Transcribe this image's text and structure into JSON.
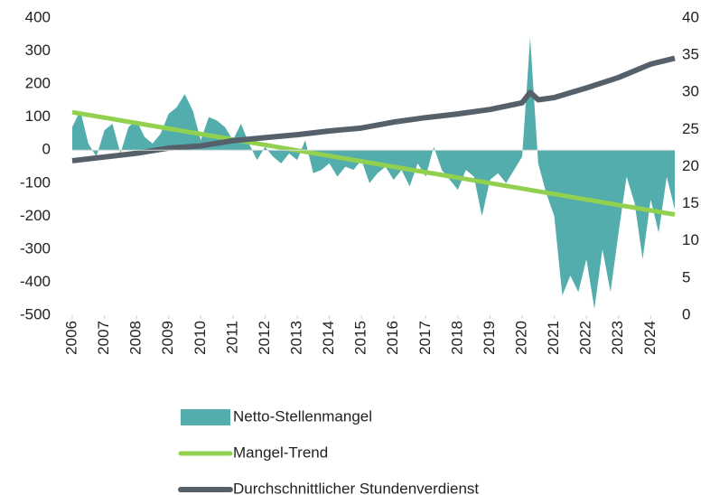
{
  "chart_data": {
    "type": "combo",
    "xlim": [
      2006,
      2024.75
    ],
    "xticks": [
      2006,
      2007,
      2008,
      2009,
      2010,
      2011,
      2012,
      2013,
      2014,
      2015,
      2016,
      2017,
      2018,
      2019,
      2020,
      2021,
      2022,
      2023,
      2024
    ],
    "ylim": [
      -500,
      400
    ],
    "yticks": [
      -500,
      -400,
      -300,
      -200,
      -100,
      0,
      100,
      200,
      300,
      400
    ],
    "y2lim": [
      0,
      40
    ],
    "y2ticks": [
      0,
      5,
      10,
      15,
      20,
      25,
      30,
      35,
      40
    ],
    "series": [
      {
        "name": "Netto-Stellenmangel",
        "type": "area",
        "color": "#52adac",
        "x": [
          2006,
          2006.25,
          2006.5,
          2006.75,
          2007,
          2007.25,
          2007.5,
          2007.75,
          2008,
          2008.25,
          2008.5,
          2008.75,
          2009,
          2009.25,
          2009.5,
          2009.75,
          2010,
          2010.25,
          2010.5,
          2010.75,
          2011,
          2011.25,
          2011.5,
          2011.75,
          2012,
          2012.25,
          2012.5,
          2012.75,
          2013,
          2013.25,
          2013.5,
          2013.75,
          2014,
          2014.25,
          2014.5,
          2014.75,
          2015,
          2015.25,
          2015.5,
          2015.75,
          2016,
          2016.25,
          2016.5,
          2016.75,
          2017,
          2017.25,
          2017.5,
          2017.75,
          2018,
          2018.25,
          2018.5,
          2018.75,
          2019,
          2019.25,
          2019.5,
          2019.75,
          2020,
          2020.25,
          2020.5,
          2020.75,
          2021,
          2021.25,
          2021.5,
          2021.75,
          2022,
          2022.25,
          2022.5,
          2022.75,
          2023,
          2023.25,
          2023.5,
          2023.75,
          2024,
          2024.25,
          2024.5,
          2024.75
        ],
        "values": [
          70,
          120,
          20,
          -20,
          60,
          80,
          -10,
          70,
          90,
          40,
          20,
          50,
          110,
          130,
          170,
          120,
          30,
          100,
          90,
          70,
          30,
          80,
          20,
          -30,
          10,
          -20,
          -40,
          -10,
          -30,
          30,
          -70,
          -60,
          -40,
          -80,
          -50,
          -60,
          -30,
          -100,
          -70,
          -50,
          -90,
          -60,
          -110,
          -40,
          -80,
          10,
          -60,
          -90,
          -120,
          -60,
          -80,
          -200,
          -90,
          -70,
          -100,
          -60,
          -20,
          340,
          -40,
          -130,
          -200,
          -440,
          -380,
          -430,
          -330,
          -480,
          -300,
          -430,
          -250,
          -80,
          -160,
          -330,
          -150,
          -250,
          -80,
          -180
        ]
      },
      {
        "name": "Mangel-Trend",
        "type": "line",
        "color": "#92d050",
        "width": 5,
        "x": [
          2006,
          2024.75
        ],
        "values": [
          115,
          -195
        ]
      },
      {
        "name": "Durchschnittlicher Stundenverdienst",
        "type": "line",
        "color": "#55606b",
        "width": 6,
        "axis": "y2",
        "x": [
          2006,
          2007,
          2008,
          2009,
          2010,
          2011,
          2012,
          2013,
          2014,
          2015,
          2016,
          2017,
          2018,
          2019,
          2020,
          2020.25,
          2020.5,
          2021,
          2022,
          2023,
          2024,
          2024.75
        ],
        "values": [
          20.8,
          21.3,
          21.8,
          22.5,
          22.8,
          23.5,
          23.9,
          24.3,
          24.8,
          25.2,
          26.0,
          26.6,
          27.1,
          27.7,
          28.6,
          30.0,
          29.0,
          29.3,
          30.6,
          32.0,
          33.8,
          34.6
        ]
      }
    ]
  }
}
